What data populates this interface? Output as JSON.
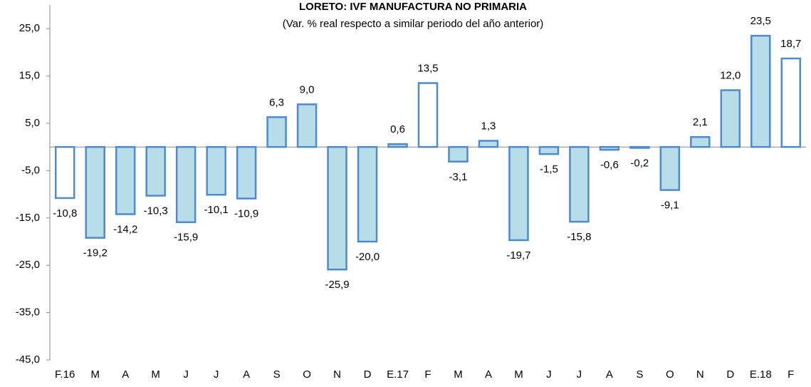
{
  "chart_data": {
    "type": "bar",
    "title": "LORETO: IVF MANUFACTURA NO PRIMARIA",
    "subtitle": "(Var. % real respecto a similar periodo del año anterior)",
    "categories": [
      "F.16",
      "M",
      "A",
      "M",
      "J",
      "J",
      "A",
      "S",
      "O",
      "N",
      "D",
      "E.17",
      "F",
      "M",
      "A",
      "M",
      "J",
      "J",
      "A",
      "S",
      "O",
      "N",
      "D",
      "E.18",
      "F"
    ],
    "values": [
      -10.8,
      -19.2,
      -14.2,
      -10.3,
      -15.9,
      -10.1,
      -10.9,
      6.3,
      9.0,
      -25.9,
      -20.0,
      0.6,
      13.5,
      -3.1,
      1.3,
      -19.7,
      -1.5,
      -15.8,
      -0.6,
      -0.2,
      -9.1,
      2.1,
      12.0,
      23.5,
      18.7
    ],
    "value_labels": [
      "-10,8",
      "-19,2",
      "-14,2",
      "-10,3",
      "-15,9",
      "-10,1",
      "-10,9",
      "6,3",
      "9,0",
      "-25,9",
      "-20,0",
      "0,6",
      "13,5",
      "-3,1",
      "1,3",
      "-19,7",
      "-1,5",
      "-15,8",
      "-0,6",
      "-0,2",
      "-9,1",
      "2,1",
      "12,0",
      "23,5",
      "18,7"
    ],
    "colors": [
      "#ffffff",
      "#b7dde8",
      "#b7dde8",
      "#b7dde8",
      "#b7dde8",
      "#b7dde8",
      "#b7dde8",
      "#b7dde8",
      "#b7dde8",
      "#b7dde8",
      "#b7dde8",
      "#b7dde8",
      "#ffffff",
      "#b7dde8",
      "#b7dde8",
      "#b7dde8",
      "#b7dde8",
      "#b7dde8",
      "#b7dde8",
      "#b7dde8",
      "#b7dde8",
      "#b7dde8",
      "#b7dde8",
      "#b7dde8",
      "#ffffff"
    ],
    "edge_color": "#4f8ad0",
    "ylim": [
      -45,
      30
    ],
    "yticks": [
      {
        "value": -45,
        "label": "-45,0"
      },
      {
        "value": -35,
        "label": "-35,0"
      },
      {
        "value": -25,
        "label": "-25,0"
      },
      {
        "value": -15,
        "label": "-15,0"
      },
      {
        "value": -5,
        "label": "-5,0"
      },
      {
        "value": 5,
        "label": "5,0"
      },
      {
        "value": 15,
        "label": "15,0"
      },
      {
        "value": 25,
        "label": "25,0"
      }
    ],
    "grid": false
  }
}
